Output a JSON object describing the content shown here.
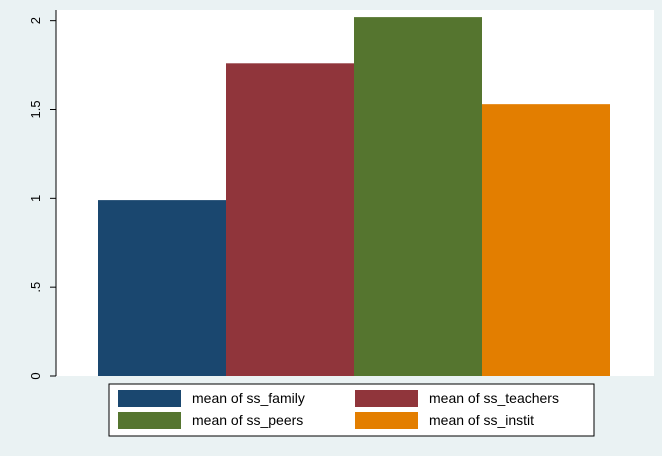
{
  "chart_data": {
    "type": "bar",
    "series": [
      {
        "name": "mean of ss_family",
        "value": 0.99,
        "color": "#1a476f"
      },
      {
        "name": "mean of ss_teachers",
        "value": 1.76,
        "color": "#90353b"
      },
      {
        "name": "mean of ss_peers",
        "value": 2.02,
        "color": "#55752f"
      },
      {
        "name": "mean of ss_instit",
        "value": 1.53,
        "color": "#e37e00"
      }
    ],
    "y_ticks": [
      {
        "value": 0,
        "label": "0"
      },
      {
        "value": 0.5,
        "label": ".5"
      },
      {
        "value": 1,
        "label": "1"
      },
      {
        "value": 1.5,
        "label": "1.5"
      },
      {
        "value": 2,
        "label": "2"
      }
    ],
    "ylim": [
      0,
      2.06
    ],
    "grid": false,
    "legend_position": "bottom",
    "background_color": "#eaf2f3",
    "plot_background_color": "#ffffff"
  }
}
